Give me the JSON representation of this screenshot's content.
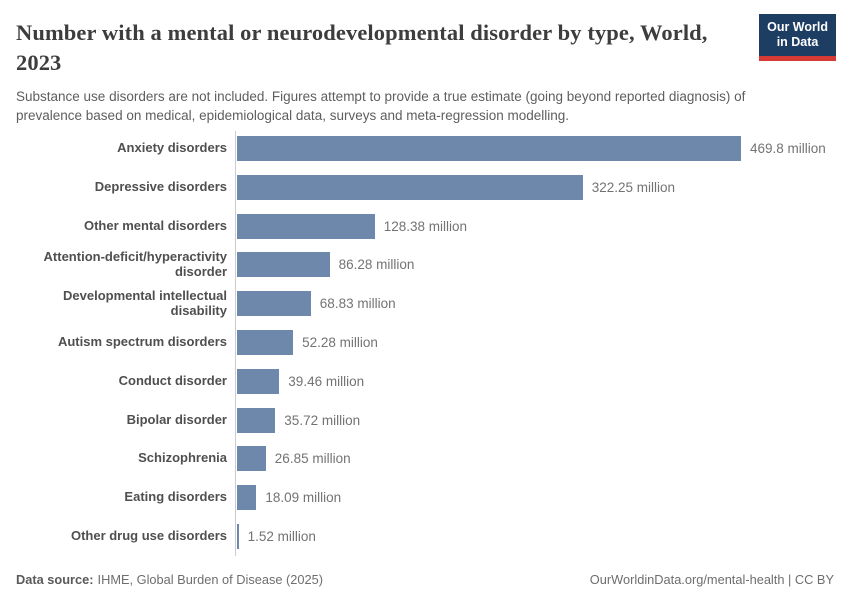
{
  "header": {
    "title": "Number with a mental or neurodevelopmental disorder by type, World, 2023",
    "subtitle": "Substance use disorders are not included. Figures attempt to provide a true estimate (going beyond reported diagnosis) of prevalence based on medical, epidemiological data, surveys and meta-regression modelling.",
    "logo": {
      "line1": "Our World",
      "line2": "in Data"
    }
  },
  "chart_data": {
    "type": "bar",
    "orientation": "horizontal",
    "title": "Number with a mental or neurodevelopmental disorder by type, World, 2023",
    "categories": [
      "Anxiety disorders",
      "Depressive disorders",
      "Other mental disorders",
      "Attention-deficit/hyperactivity disorder",
      "Developmental intellectual disability",
      "Autism spectrum disorders",
      "Conduct disorder",
      "Bipolar disorder",
      "Schizophrenia",
      "Eating disorders",
      "Other drug use disorders"
    ],
    "values": [
      469.8,
      322.25,
      128.38,
      86.28,
      68.83,
      52.28,
      39.46,
      35.72,
      26.85,
      18.09,
      1.52
    ],
    "value_labels": [
      "469.8 million",
      "322.25 million",
      "128.38 million",
      "86.28 million",
      "68.83 million",
      "52.28 million",
      "39.46 million",
      "35.72 million",
      "26.85 million",
      "18.09 million",
      "1.52 million"
    ],
    "unit": "million",
    "xlim": [
      0,
      469.8
    ],
    "bar_color": "#6e88ab",
    "grid": false,
    "legend": false
  },
  "footer": {
    "source_label": "Data source:",
    "source_value": "IHME, Global Burden of Disease (2025)",
    "note": "OurWorldinData.org/mental-health | CC BY"
  },
  "colors": {
    "accent": "#6e88ab",
    "logo_bg": "#1d3d63",
    "logo_red": "#d73a34",
    "axis": "#cccccc"
  }
}
